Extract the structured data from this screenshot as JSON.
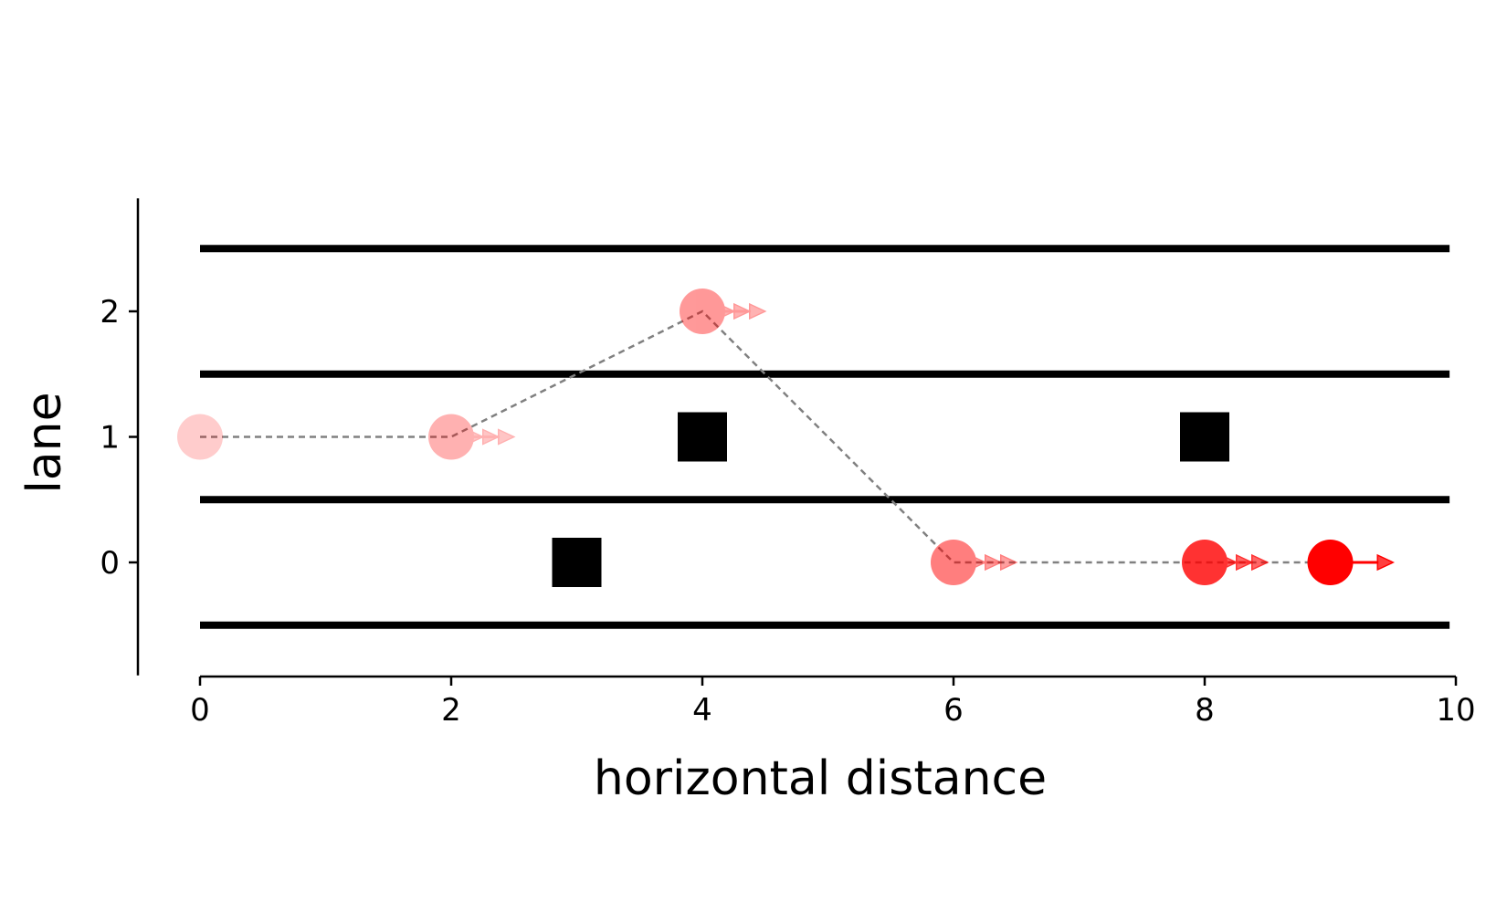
{
  "chart_data": {
    "type": "scatter",
    "title": "",
    "xlabel": "horizontal distance",
    "ylabel": "lane",
    "xlim": [
      0,
      10
    ],
    "ylim": [
      -0.9,
      2.9
    ],
    "xticks": [
      0,
      2,
      4,
      6,
      8,
      10
    ],
    "yticks": [
      0,
      1,
      2
    ],
    "grid": false,
    "lane_boundaries": [
      -0.5,
      0.5,
      1.5,
      2.5
    ],
    "lane_boundary_x_range": [
      0,
      9.95
    ],
    "obstacles": [
      {
        "x": 3,
        "y": 0
      },
      {
        "x": 4,
        "y": 1
      },
      {
        "x": 8,
        "y": 1
      }
    ],
    "trajectory": [
      {
        "x": 0,
        "y": 1,
        "opacity": 0.2,
        "arrows": 0
      },
      {
        "x": 2,
        "y": 1,
        "opacity": 0.3,
        "arrows": 3
      },
      {
        "x": 4,
        "y": 2,
        "opacity": 0.4,
        "arrows": 3
      },
      {
        "x": 6,
        "y": 0,
        "opacity": 0.5,
        "arrows": 3
      },
      {
        "x": 8,
        "y": 0,
        "opacity": 0.8,
        "arrows": 3
      },
      {
        "x": 9,
        "y": 0,
        "opacity": 1.0,
        "arrows": 1
      }
    ],
    "colors": {
      "vehicle": "#ff0000",
      "obstacle": "#000000",
      "path": "#808080",
      "lane_line": "#000000"
    }
  }
}
